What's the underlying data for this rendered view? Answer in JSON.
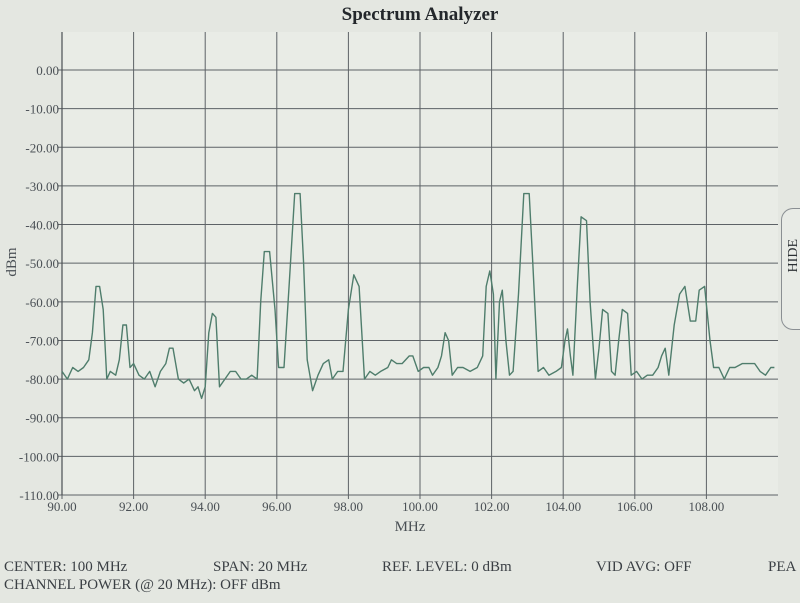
{
  "chart_data": {
    "type": "line",
    "title": "Spectrum Analyzer",
    "xlabel": "MHz",
    "ylabel": "dBm",
    "xlim": [
      90,
      110
    ],
    "ylim": [
      -110,
      0
    ],
    "x_ticks": [
      "90.00",
      "92.00",
      "94.00",
      "96.00",
      "98.00",
      "100.00",
      "102.00",
      "104.00",
      "106.00",
      "108.00"
    ],
    "y_ticks": [
      "0.00",
      "-10.00",
      "-20.00",
      "-30.00",
      "-40.00",
      "-50.00",
      "-60.00",
      "-70.00",
      "-80.00",
      "-90.00",
      "-100.00",
      "-110.00"
    ],
    "grid": true,
    "line_color": "#4f7d6c",
    "series": [
      {
        "points": [
          [
            90.0,
            -78
          ],
          [
            90.15,
            -80
          ],
          [
            90.3,
            -77
          ],
          [
            90.45,
            -78
          ],
          [
            90.6,
            -77
          ],
          [
            90.75,
            -75
          ],
          [
            90.85,
            -68
          ],
          [
            90.95,
            -56
          ],
          [
            91.05,
            -56
          ],
          [
            91.15,
            -62
          ],
          [
            91.25,
            -80
          ],
          [
            91.35,
            -78
          ],
          [
            91.5,
            -79
          ],
          [
            91.6,
            -75
          ],
          [
            91.7,
            -66
          ],
          [
            91.8,
            -66
          ],
          [
            91.9,
            -77
          ],
          [
            92.0,
            -76
          ],
          [
            92.15,
            -79
          ],
          [
            92.3,
            -80
          ],
          [
            92.45,
            -78
          ],
          [
            92.6,
            -82
          ],
          [
            92.75,
            -78
          ],
          [
            92.9,
            -76
          ],
          [
            93.0,
            -72
          ],
          [
            93.1,
            -72
          ],
          [
            93.25,
            -80
          ],
          [
            93.4,
            -81
          ],
          [
            93.55,
            -80
          ],
          [
            93.7,
            -83
          ],
          [
            93.8,
            -82
          ],
          [
            93.9,
            -85
          ],
          [
            94.0,
            -82
          ],
          [
            94.1,
            -68
          ],
          [
            94.2,
            -63
          ],
          [
            94.3,
            -64
          ],
          [
            94.4,
            -82
          ],
          [
            94.55,
            -80
          ],
          [
            94.7,
            -78
          ],
          [
            94.85,
            -78
          ],
          [
            95.0,
            -80
          ],
          [
            95.15,
            -80
          ],
          [
            95.3,
            -79
          ],
          [
            95.45,
            -80
          ],
          [
            95.55,
            -60
          ],
          [
            95.65,
            -47
          ],
          [
            95.8,
            -47
          ],
          [
            95.95,
            -62
          ],
          [
            96.05,
            -77
          ],
          [
            96.2,
            -77
          ],
          [
            96.35,
            -55
          ],
          [
            96.5,
            -32
          ],
          [
            96.65,
            -32
          ],
          [
            96.75,
            -50
          ],
          [
            96.85,
            -75
          ],
          [
            97.0,
            -83
          ],
          [
            97.15,
            -79
          ],
          [
            97.3,
            -76
          ],
          [
            97.45,
            -75
          ],
          [
            97.55,
            -80
          ],
          [
            97.7,
            -78
          ],
          [
            97.85,
            -78
          ],
          [
            98.0,
            -62
          ],
          [
            98.15,
            -53
          ],
          [
            98.3,
            -56
          ],
          [
            98.45,
            -80
          ],
          [
            98.6,
            -78
          ],
          [
            98.75,
            -79
          ],
          [
            98.9,
            -78
          ],
          [
            99.1,
            -77
          ],
          [
            99.2,
            -75
          ],
          [
            99.35,
            -76
          ],
          [
            99.5,
            -76
          ],
          [
            99.7,
            -74
          ],
          [
            99.8,
            -74
          ],
          [
            99.95,
            -78
          ],
          [
            100.1,
            -77
          ],
          [
            100.25,
            -77
          ],
          [
            100.35,
            -79
          ],
          [
            100.5,
            -77
          ],
          [
            100.6,
            -74
          ],
          [
            100.7,
            -68
          ],
          [
            100.8,
            -70
          ],
          [
            100.9,
            -79
          ],
          [
            101.05,
            -77
          ],
          [
            101.2,
            -77
          ],
          [
            101.4,
            -78
          ],
          [
            101.6,
            -77
          ],
          [
            101.75,
            -74
          ],
          [
            101.85,
            -56
          ],
          [
            101.95,
            -52
          ],
          [
            102.05,
            -58
          ],
          [
            102.12,
            -80
          ],
          [
            102.22,
            -60
          ],
          [
            102.3,
            -57
          ],
          [
            102.4,
            -70
          ],
          [
            102.5,
            -79
          ],
          [
            102.6,
            -78
          ],
          [
            102.75,
            -58
          ],
          [
            102.9,
            -32
          ],
          [
            103.05,
            -32
          ],
          [
            103.15,
            -50
          ],
          [
            103.3,
            -78
          ],
          [
            103.45,
            -77
          ],
          [
            103.6,
            -79
          ],
          [
            103.8,
            -78
          ],
          [
            103.95,
            -77
          ],
          [
            104.05,
            -70
          ],
          [
            104.12,
            -67
          ],
          [
            104.2,
            -74
          ],
          [
            104.27,
            -79
          ],
          [
            104.4,
            -55
          ],
          [
            104.5,
            -38
          ],
          [
            104.65,
            -39
          ],
          [
            104.75,
            -60
          ],
          [
            104.9,
            -80
          ],
          [
            105.0,
            -72
          ],
          [
            105.1,
            -62
          ],
          [
            105.25,
            -63
          ],
          [
            105.35,
            -78
          ],
          [
            105.45,
            -79
          ],
          [
            105.55,
            -70
          ],
          [
            105.65,
            -62
          ],
          [
            105.8,
            -63
          ],
          [
            105.9,
            -79
          ],
          [
            106.05,
            -78
          ],
          [
            106.2,
            -80
          ],
          [
            106.35,
            -79
          ],
          [
            106.5,
            -79
          ],
          [
            106.65,
            -77
          ],
          [
            106.75,
            -74
          ],
          [
            106.85,
            -72
          ],
          [
            106.95,
            -79
          ],
          [
            107.1,
            -66
          ],
          [
            107.25,
            -58
          ],
          [
            107.4,
            -56
          ],
          [
            107.55,
            -65
          ],
          [
            107.7,
            -65
          ],
          [
            107.8,
            -57
          ],
          [
            107.95,
            -56
          ],
          [
            108.1,
            -70
          ],
          [
            108.2,
            -77
          ],
          [
            108.35,
            -77
          ],
          [
            108.5,
            -80
          ],
          [
            108.65,
            -77
          ],
          [
            108.8,
            -77
          ],
          [
            109.0,
            -76
          ],
          [
            109.2,
            -76
          ],
          [
            109.35,
            -76
          ],
          [
            109.5,
            -78
          ],
          [
            109.65,
            -79
          ],
          [
            109.8,
            -77
          ],
          [
            109.9,
            -77
          ]
        ]
      }
    ]
  },
  "side_tab": {
    "label": "HIDE"
  },
  "status": {
    "center": "CENTER: 100 MHz",
    "span": "SPAN: 20 MHz",
    "ref_level": "REF. LEVEL: 0 dBm",
    "vid_avg": "VID AVG: OFF",
    "peak": "PEA",
    "channel_power": "CHANNEL POWER (@ 20 MHz): OFF dBm"
  }
}
